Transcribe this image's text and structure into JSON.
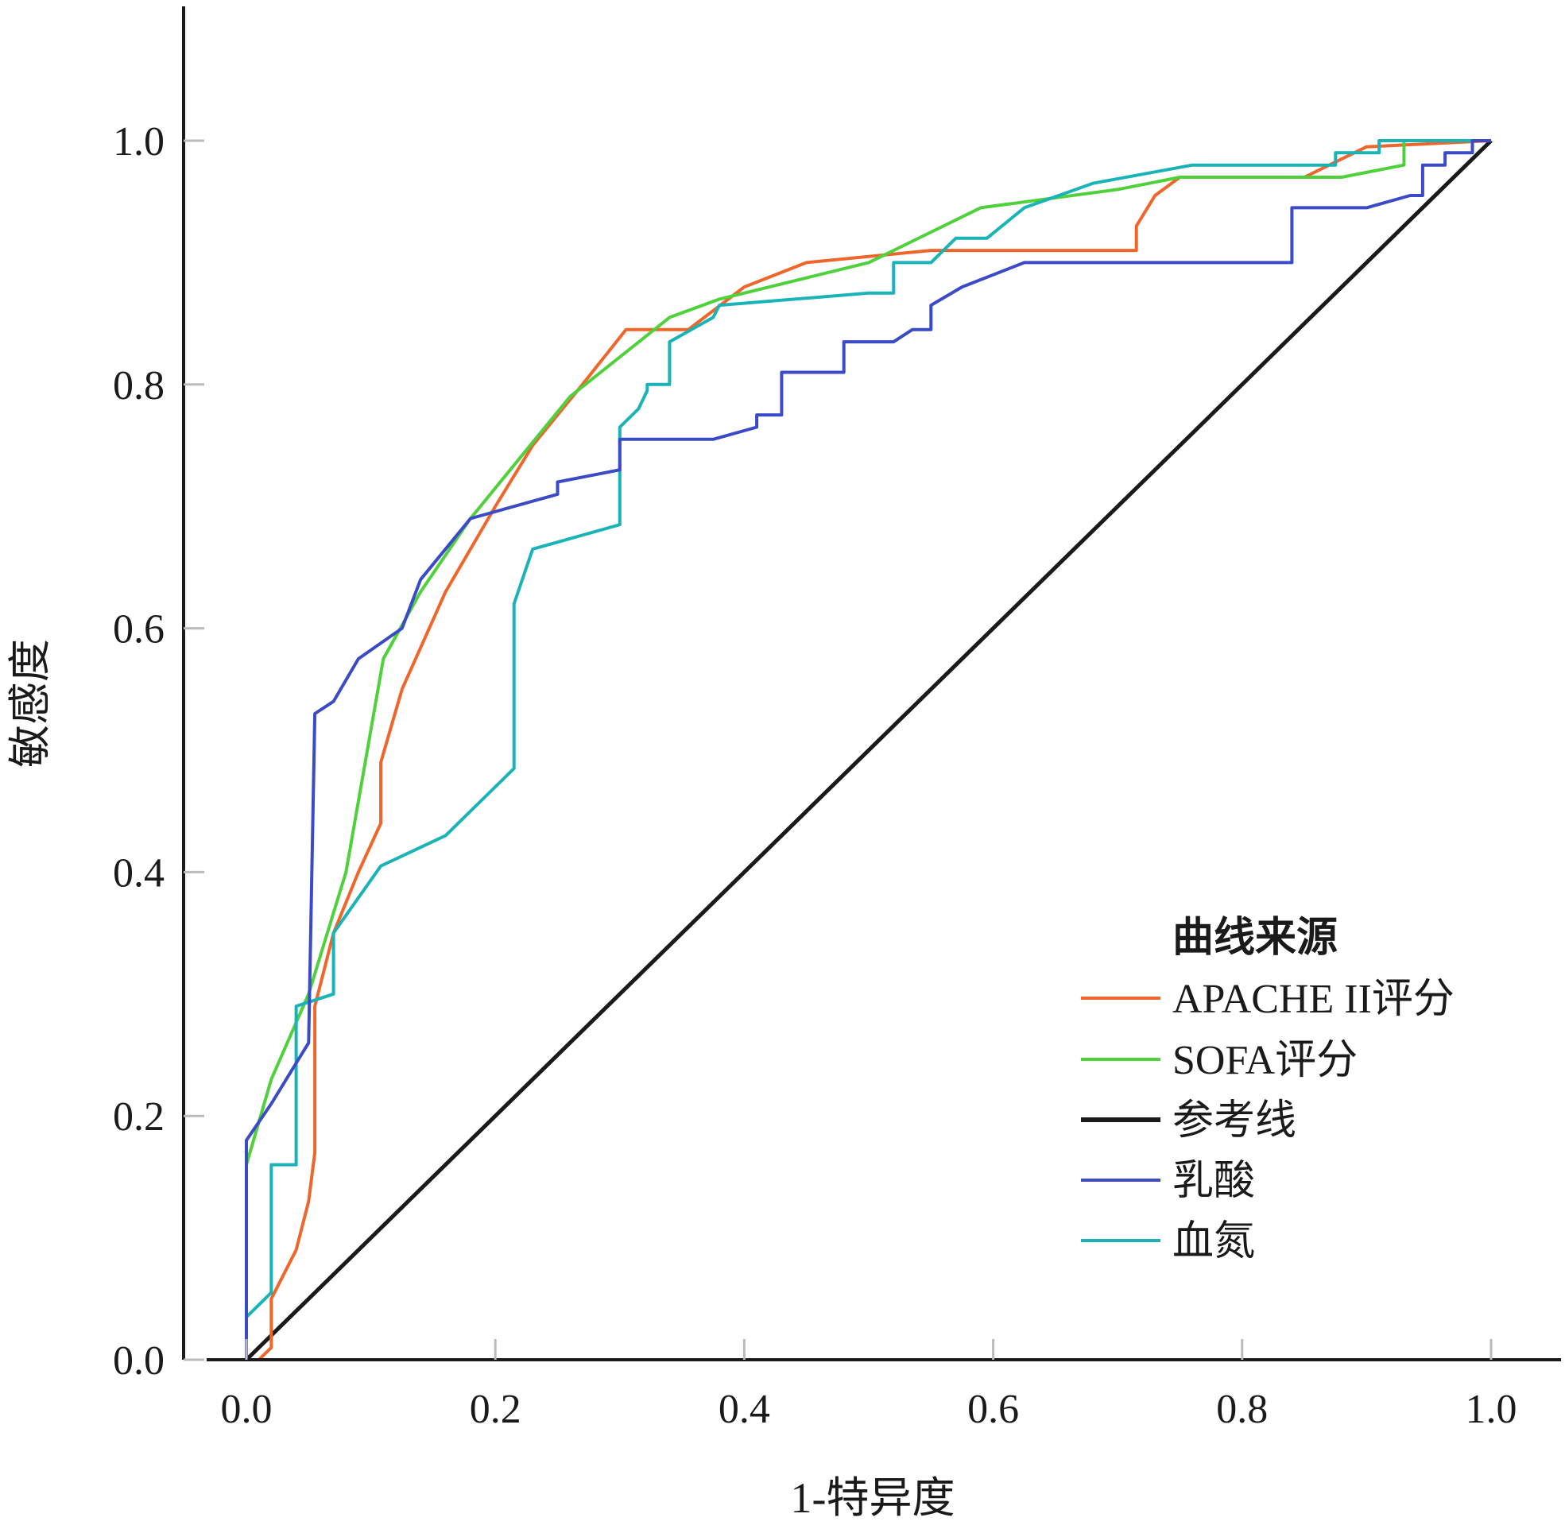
{
  "chart_data": {
    "type": "line",
    "title": "",
    "xlabel": "1-特异度",
    "ylabel": "敏感度",
    "xlim": [
      -0.05,
      1.05
    ],
    "ylim": [
      0,
      1.1
    ],
    "xticks": [
      "0.0",
      "0.2",
      "0.4",
      "0.6",
      "0.8",
      "1.0"
    ],
    "yticks": [
      "0.0",
      "0.2",
      "0.4",
      "0.6",
      "0.8",
      "1.0"
    ],
    "grid": false,
    "legend": {
      "title": "曲线来源",
      "placement": "bottom-right"
    },
    "series": [
      {
        "name": "APACHE II评分",
        "color": "#f0662a",
        "points": [
          [
            0.0,
            0.0
          ],
          [
            0.01,
            0.0
          ],
          [
            0.02,
            0.01
          ],
          [
            0.02,
            0.05
          ],
          [
            0.04,
            0.09
          ],
          [
            0.05,
            0.13
          ],
          [
            0.055,
            0.17
          ],
          [
            0.055,
            0.29
          ],
          [
            0.07,
            0.35
          ],
          [
            0.09,
            0.4
          ],
          [
            0.108,
            0.44
          ],
          [
            0.108,
            0.49
          ],
          [
            0.125,
            0.55
          ],
          [
            0.16,
            0.63
          ],
          [
            0.2,
            0.7
          ],
          [
            0.23,
            0.75
          ],
          [
            0.27,
            0.8
          ],
          [
            0.305,
            0.845
          ],
          [
            0.355,
            0.845
          ],
          [
            0.4,
            0.88
          ],
          [
            0.45,
            0.9
          ],
          [
            0.55,
            0.91
          ],
          [
            0.715,
            0.91
          ],
          [
            0.715,
            0.93
          ],
          [
            0.73,
            0.955
          ],
          [
            0.75,
            0.97
          ],
          [
            0.85,
            0.97
          ],
          [
            0.9,
            0.995
          ],
          [
            1.0,
            1.0
          ]
        ]
      },
      {
        "name": "SOFA评分",
        "color": "#4fd13c",
        "points": [
          [
            0.0,
            0.16
          ],
          [
            0.02,
            0.23
          ],
          [
            0.05,
            0.3
          ],
          [
            0.08,
            0.4
          ],
          [
            0.11,
            0.575
          ],
          [
            0.14,
            0.63
          ],
          [
            0.18,
            0.69
          ],
          [
            0.22,
            0.74
          ],
          [
            0.26,
            0.79
          ],
          [
            0.34,
            0.855
          ],
          [
            0.38,
            0.87
          ],
          [
            0.5,
            0.9
          ],
          [
            0.59,
            0.945
          ],
          [
            0.7,
            0.96
          ],
          [
            0.75,
            0.97
          ],
          [
            0.88,
            0.97
          ],
          [
            0.93,
            0.98
          ],
          [
            0.93,
            1.0
          ],
          [
            1.0,
            1.0
          ]
        ]
      },
      {
        "name": "参考线",
        "color": "#1a1a1a",
        "points": [
          [
            0.0,
            0.0
          ],
          [
            1.0,
            1.0
          ]
        ]
      },
      {
        "name": "乳酸",
        "color": "#3b4bc8",
        "points": [
          [
            0.0,
            0.0
          ],
          [
            0.0,
            0.18
          ],
          [
            0.02,
            0.21
          ],
          [
            0.05,
            0.26
          ],
          [
            0.055,
            0.53
          ],
          [
            0.07,
            0.54
          ],
          [
            0.09,
            0.575
          ],
          [
            0.125,
            0.6
          ],
          [
            0.14,
            0.64
          ],
          [
            0.18,
            0.69
          ],
          [
            0.25,
            0.71
          ],
          [
            0.25,
            0.72
          ],
          [
            0.3,
            0.73
          ],
          [
            0.3,
            0.755
          ],
          [
            0.375,
            0.755
          ],
          [
            0.41,
            0.765
          ],
          [
            0.41,
            0.775
          ],
          [
            0.43,
            0.775
          ],
          [
            0.43,
            0.81
          ],
          [
            0.48,
            0.81
          ],
          [
            0.48,
            0.835
          ],
          [
            0.52,
            0.835
          ],
          [
            0.535,
            0.845
          ],
          [
            0.55,
            0.845
          ],
          [
            0.55,
            0.865
          ],
          [
            0.575,
            0.88
          ],
          [
            0.625,
            0.9
          ],
          [
            0.84,
            0.9
          ],
          [
            0.84,
            0.945
          ],
          [
            0.9,
            0.945
          ],
          [
            0.935,
            0.955
          ],
          [
            0.945,
            0.955
          ],
          [
            0.945,
            0.98
          ],
          [
            0.963,
            0.98
          ],
          [
            0.963,
            0.99
          ],
          [
            0.985,
            0.99
          ],
          [
            0.985,
            1.0
          ],
          [
            1.0,
            1.0
          ]
        ]
      },
      {
        "name": "血氮",
        "color": "#1ab3b8",
        "points": [
          [
            0.0,
            0.0
          ],
          [
            0.0,
            0.035
          ],
          [
            0.02,
            0.055
          ],
          [
            0.02,
            0.16
          ],
          [
            0.04,
            0.16
          ],
          [
            0.04,
            0.29
          ],
          [
            0.07,
            0.3
          ],
          [
            0.07,
            0.35
          ],
          [
            0.108,
            0.405
          ],
          [
            0.16,
            0.43
          ],
          [
            0.215,
            0.485
          ],
          [
            0.215,
            0.62
          ],
          [
            0.23,
            0.665
          ],
          [
            0.3,
            0.685
          ],
          [
            0.3,
            0.765
          ],
          [
            0.315,
            0.78
          ],
          [
            0.322,
            0.795
          ],
          [
            0.322,
            0.8
          ],
          [
            0.34,
            0.8
          ],
          [
            0.34,
            0.835
          ],
          [
            0.375,
            0.855
          ],
          [
            0.38,
            0.865
          ],
          [
            0.5,
            0.875
          ],
          [
            0.52,
            0.875
          ],
          [
            0.52,
            0.9
          ],
          [
            0.55,
            0.9
          ],
          [
            0.57,
            0.92
          ],
          [
            0.595,
            0.92
          ],
          [
            0.625,
            0.945
          ],
          [
            0.68,
            0.965
          ],
          [
            0.76,
            0.98
          ],
          [
            0.875,
            0.98
          ],
          [
            0.875,
            0.99
          ],
          [
            0.91,
            0.99
          ],
          [
            0.91,
            1.0
          ],
          [
            1.0,
            1.0
          ]
        ]
      }
    ]
  }
}
